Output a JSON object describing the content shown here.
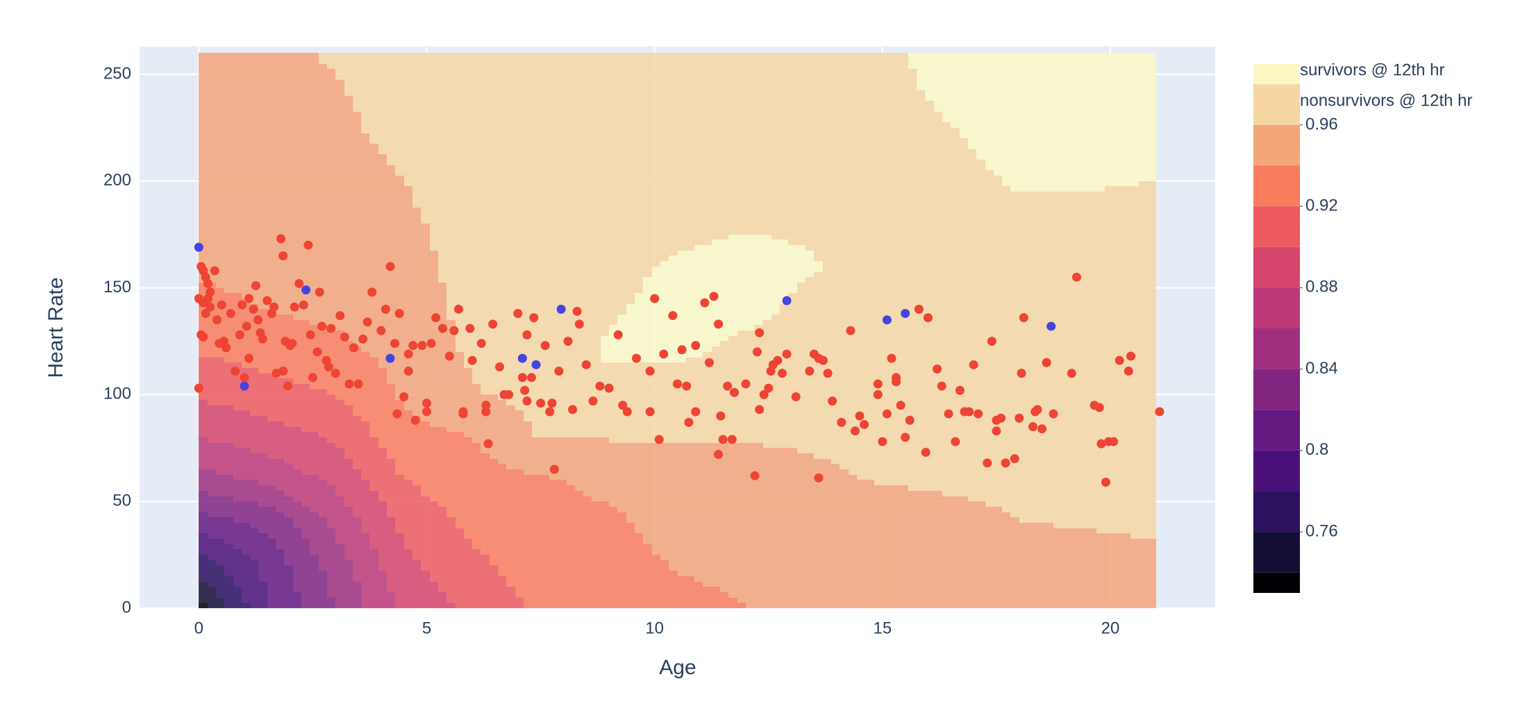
{
  "chart_data": {
    "type": "contour",
    "x_label": "Age",
    "y_label": "Heart Rate",
    "xlim": [
      -1.3,
      22.3
    ],
    "ylim": [
      0,
      263
    ],
    "xticks": [
      0,
      5,
      10,
      15,
      20
    ],
    "yticks": [
      0,
      50,
      100,
      150,
      200,
      250
    ],
    "grid": true,
    "contour_x": [
      0,
      1.5,
      3,
      4.5,
      6,
      7.5,
      9,
      10.5,
      12,
      13.5,
      15,
      16.5,
      18,
      19.5,
      21
    ],
    "contour_y": [
      0,
      20,
      40,
      60,
      80,
      100,
      120,
      140,
      160,
      180,
      200,
      220,
      240,
      260
    ],
    "z": [
      [
        0.73,
        0.8,
        0.84,
        0.885,
        0.905,
        0.925,
        0.927,
        0.935,
        0.94,
        0.943,
        0.944,
        0.945,
        0.946,
        0.948,
        0.95
      ],
      [
        0.77,
        0.805,
        0.85,
        0.895,
        0.915,
        0.93,
        0.932,
        0.941,
        0.944,
        0.946,
        0.948,
        0.95,
        0.952,
        0.955,
        0.957
      ],
      [
        0.81,
        0.825,
        0.865,
        0.905,
        0.925,
        0.934,
        0.936,
        0.948,
        0.949,
        0.95,
        0.953,
        0.956,
        0.96,
        0.961,
        0.962
      ],
      [
        0.85,
        0.865,
        0.885,
        0.92,
        0.933,
        0.938,
        0.945,
        0.953,
        0.954,
        0.957,
        0.961,
        0.962,
        0.963,
        0.964,
        0.965
      ],
      [
        0.88,
        0.89,
        0.902,
        0.933,
        0.94,
        0.961,
        0.961,
        0.961,
        0.961,
        0.962,
        0.965,
        0.965,
        0.966,
        0.966,
        0.967
      ],
      [
        0.903,
        0.912,
        0.92,
        0.942,
        0.958,
        0.967,
        0.975,
        0.972,
        0.97,
        0.968,
        0.968,
        0.967,
        0.968,
        0.968,
        0.969
      ],
      [
        0.921,
        0.928,
        0.935,
        0.947,
        0.963,
        0.972,
        0.982,
        0.983,
        0.976,
        0.972,
        0.97,
        0.969,
        0.97,
        0.97,
        0.971
      ],
      [
        0.934,
        0.94,
        0.945,
        0.951,
        0.965,
        0.974,
        0.978,
        0.986,
        0.984,
        0.976,
        0.972,
        0.971,
        0.972,
        0.972,
        0.973
      ],
      [
        0.943,
        0.947,
        0.951,
        0.954,
        0.966,
        0.975,
        0.975,
        0.982,
        0.986,
        0.981,
        0.973,
        0.973,
        0.974,
        0.974,
        0.975
      ],
      [
        0.948,
        0.951,
        0.954,
        0.957,
        0.967,
        0.975,
        0.974,
        0.976,
        0.978,
        0.978,
        0.974,
        0.975,
        0.977,
        0.977,
        0.977
      ],
      [
        0.951,
        0.954,
        0.956,
        0.96,
        0.968,
        0.975,
        0.974,
        0.975,
        0.976,
        0.975,
        0.975,
        0.977,
        0.981,
        0.981,
        0.98
      ],
      [
        0.953,
        0.956,
        0.958,
        0.962,
        0.969,
        0.975,
        0.975,
        0.976,
        0.977,
        0.976,
        0.976,
        0.979,
        0.984,
        0.984,
        0.984
      ],
      [
        0.955,
        0.957,
        0.959,
        0.964,
        0.97,
        0.976,
        0.976,
        0.977,
        0.977,
        0.977,
        0.977,
        0.982,
        0.986,
        0.986,
        0.986
      ],
      [
        0.956,
        0.958,
        0.961,
        0.965,
        0.971,
        0.976,
        0.976,
        0.977,
        0.978,
        0.978,
        0.978,
        0.984,
        0.987,
        0.988,
        0.988
      ]
    ],
    "contours": {
      "start": 0.74,
      "end": 0.98,
      "size": 0.02,
      "colors": [
        "#000004",
        "#140e36",
        "#2c115f",
        "#4a1079",
        "#641a80",
        "#812581",
        "#9e2f7f",
        "#bc3978",
        "#d6456c",
        "#ed5a5f",
        "#f97c5d",
        "#f5a57a",
        "#f6d7a4",
        "#fbf8c6"
      ]
    },
    "zlim": [
      0.73,
      0.99
    ],
    "zticks": [
      0.76,
      0.8,
      0.84,
      0.88,
      0.92,
      0.96
    ],
    "series": [
      {
        "name": "survivors @ 12th hr",
        "color": "#ee4433",
        "x": [
          0.05,
          0.1,
          0.15,
          0.2,
          0.25,
          0.2,
          0.1,
          0,
          0.15,
          0.05,
          0.1,
          0,
          0.35,
          0.25,
          0.4,
          0.5,
          0.55,
          0.45,
          0.6,
          0.7,
          0.8,
          0.9,
          0.95,
          1,
          1.05,
          1.1,
          1.1,
          1.2,
          1.25,
          1.3,
          1.35,
          1.4,
          1.5,
          1.6,
          1.65,
          1.7,
          1.8,
          1.85,
          1.9,
          1.85,
          2,
          2.1,
          1.95,
          2.05,
          2.2,
          2.3,
          2.4,
          2.45,
          2.5,
          2.6,
          2.65,
          2.7,
          2.8,
          2.85,
          2.9,
          3,
          3.1,
          3.2,
          3.3,
          3.4,
          3.5,
          3.6,
          3.7,
          3.8,
          4,
          4.1,
          4.2,
          4.3,
          4.35,
          4.4,
          4.5,
          4.6,
          4.7,
          4.6,
          4.75,
          4.9,
          5,
          5,
          5.1,
          5.2,
          5.35,
          5.5,
          5.6,
          5.7,
          5.8,
          5.8,
          5.95,
          6,
          6.2,
          6.3,
          6.3,
          6.35,
          6.45,
          6.6,
          6.7,
          6.8,
          7,
          7.1,
          7.2,
          7.15,
          7.2,
          7.3,
          7.35,
          7.5,
          7.6,
          7.7,
          7.75,
          7.8,
          7.9,
          8.1,
          8.2,
          8.3,
          8.35,
          8.5,
          8.65,
          8.8,
          9,
          9.2,
          9.3,
          9.4,
          9.6,
          9.9,
          9.9,
          10,
          10.1,
          10.2,
          10.4,
          10.5,
          10.6,
          10.7,
          10.75,
          10.9,
          10.9,
          11.1,
          11.2,
          11.3,
          11.4,
          11.45,
          11.4,
          11.5,
          11.6,
          11.7,
          11.75,
          12,
          12.2,
          12.3,
          12.25,
          12.3,
          12.4,
          12.5,
          12.55,
          12.6,
          12.7,
          12.8,
          12.9,
          13.1,
          13.4,
          13.5,
          13.6,
          13.6,
          13.7,
          13.8,
          13.9,
          14.1,
          14.3,
          14.4,
          14.5,
          14.6,
          14.9,
          14.9,
          15,
          15.1,
          15.2,
          15.3,
          15.3,
          15.4,
          15.5,
          15.6,
          15.8,
          15.95,
          16,
          16.2,
          16.3,
          16.45,
          16.6,
          16.7,
          16.8,
          16.9,
          17,
          17.1,
          17.3,
          17.4,
          17.5,
          17.5,
          17.6,
          17.7,
          17.9,
          18,
          18.05,
          18.1,
          18.3,
          18.35,
          18.4,
          18.5,
          18.6,
          18.75,
          19.15,
          19.26,
          19.65,
          19.76,
          19.8,
          19.9,
          19.96,
          20.07,
          20.2,
          20.4,
          20.45,
          21.08
        ],
        "values": [
          160,
          158,
          155,
          152,
          148,
          145,
          143,
          145,
          138,
          128,
          127,
          103,
          158,
          141,
          135,
          142,
          125,
          124,
          122,
          138,
          111,
          128,
          142,
          108,
          132,
          145,
          117,
          140,
          151,
          135,
          129,
          126,
          144,
          138,
          141,
          110,
          173,
          165,
          125,
          111,
          123,
          141,
          104,
          124,
          152,
          142,
          170,
          128,
          108,
          120,
          148,
          132,
          116,
          113,
          131,
          110,
          137,
          127,
          105,
          122,
          105,
          126,
          134,
          148,
          130,
          140,
          160,
          124,
          91,
          138,
          99,
          111,
          123,
          119,
          88,
          123,
          96,
          92,
          124,
          136,
          131,
          118,
          130,
          140,
          92,
          91,
          131,
          116,
          124,
          95,
          92,
          77,
          133,
          113,
          100,
          100,
          138,
          108,
          128,
          102,
          97,
          108,
          136,
          96,
          123,
          92,
          96,
          65,
          111,
          125,
          93,
          139,
          133,
          114,
          97,
          104,
          103,
          128,
          95,
          92,
          117,
          92,
          111,
          145,
          79,
          119,
          137,
          105,
          121,
          104,
          87,
          123,
          92,
          143,
          115,
          146,
          133,
          90,
          72,
          79,
          104,
          79,
          101,
          105,
          62,
          129,
          120,
          93,
          100,
          103,
          111,
          114,
          116,
          110,
          119,
          99,
          111,
          119,
          117,
          61,
          116,
          110,
          97,
          87,
          130,
          83,
          90,
          86,
          105,
          100,
          78,
          91,
          117,
          108,
          106,
          95,
          80,
          88,
          140,
          73,
          136,
          112,
          104,
          91,
          78,
          102,
          92,
          92,
          114,
          91,
          68,
          125,
          83,
          88,
          89,
          68,
          70,
          89,
          110,
          136,
          85,
          92,
          93,
          84,
          115,
          91,
          110,
          155,
          95,
          94,
          77,
          59,
          78,
          78,
          116,
          111,
          118,
          92
        ]
      },
      {
        "name": "nonsurvivors @ 12th hr",
        "color": "#4444e0",
        "x": [
          0,
          1,
          2.35,
          4.2,
          7.1,
          7.4,
          7.95,
          12.9,
          15.1,
          15.5,
          18.7
        ],
        "values": [
          169,
          104,
          149,
          117,
          117,
          114,
          140,
          144,
          135,
          138,
          132
        ]
      }
    ]
  }
}
